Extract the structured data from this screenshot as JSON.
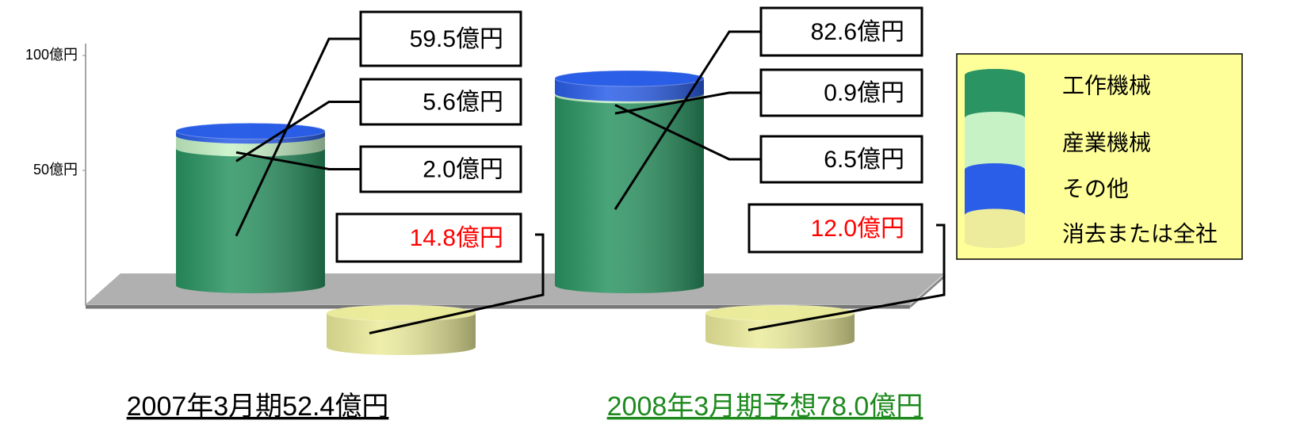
{
  "chart_data": {
    "type": "cylinder_stack",
    "categories": [
      "2007年3月期52.4億円",
      "2008年3月期予想78.0億円"
    ],
    "category_colors": [
      "#000000",
      "#1e8a1e"
    ],
    "series": [
      {
        "name": "工作機械",
        "color": "#2a9462",
        "values": [
          59.5,
          82.6
        ],
        "value_labels": [
          "59.5億円",
          "82.6億円"
        ]
      },
      {
        "name": "産業機械",
        "color": "#c6f2c6",
        "values": [
          5.6,
          0.9
        ],
        "value_labels": [
          "5.6億円",
          "0.9億円"
        ]
      },
      {
        "name": "その他",
        "color": "#2a5ee8",
        "values": [
          2.0,
          6.5
        ],
        "value_labels": [
          "2.0億円",
          "6.5億円"
        ]
      },
      {
        "name": "消去または全社",
        "color": "#ecec9c",
        "values": [
          -14.8,
          -12.0
        ],
        "value_labels": [
          "14.8億円",
          "12.0億円"
        ],
        "label_color": "#ff0000"
      }
    ],
    "ylim": [
      -20,
      100
    ],
    "yticks": [
      {
        "value": 100,
        "label": "100億円"
      },
      {
        "value": 50,
        "label": "50億円"
      }
    ],
    "legend_position": "right",
    "legend_background": "#ffff99"
  }
}
